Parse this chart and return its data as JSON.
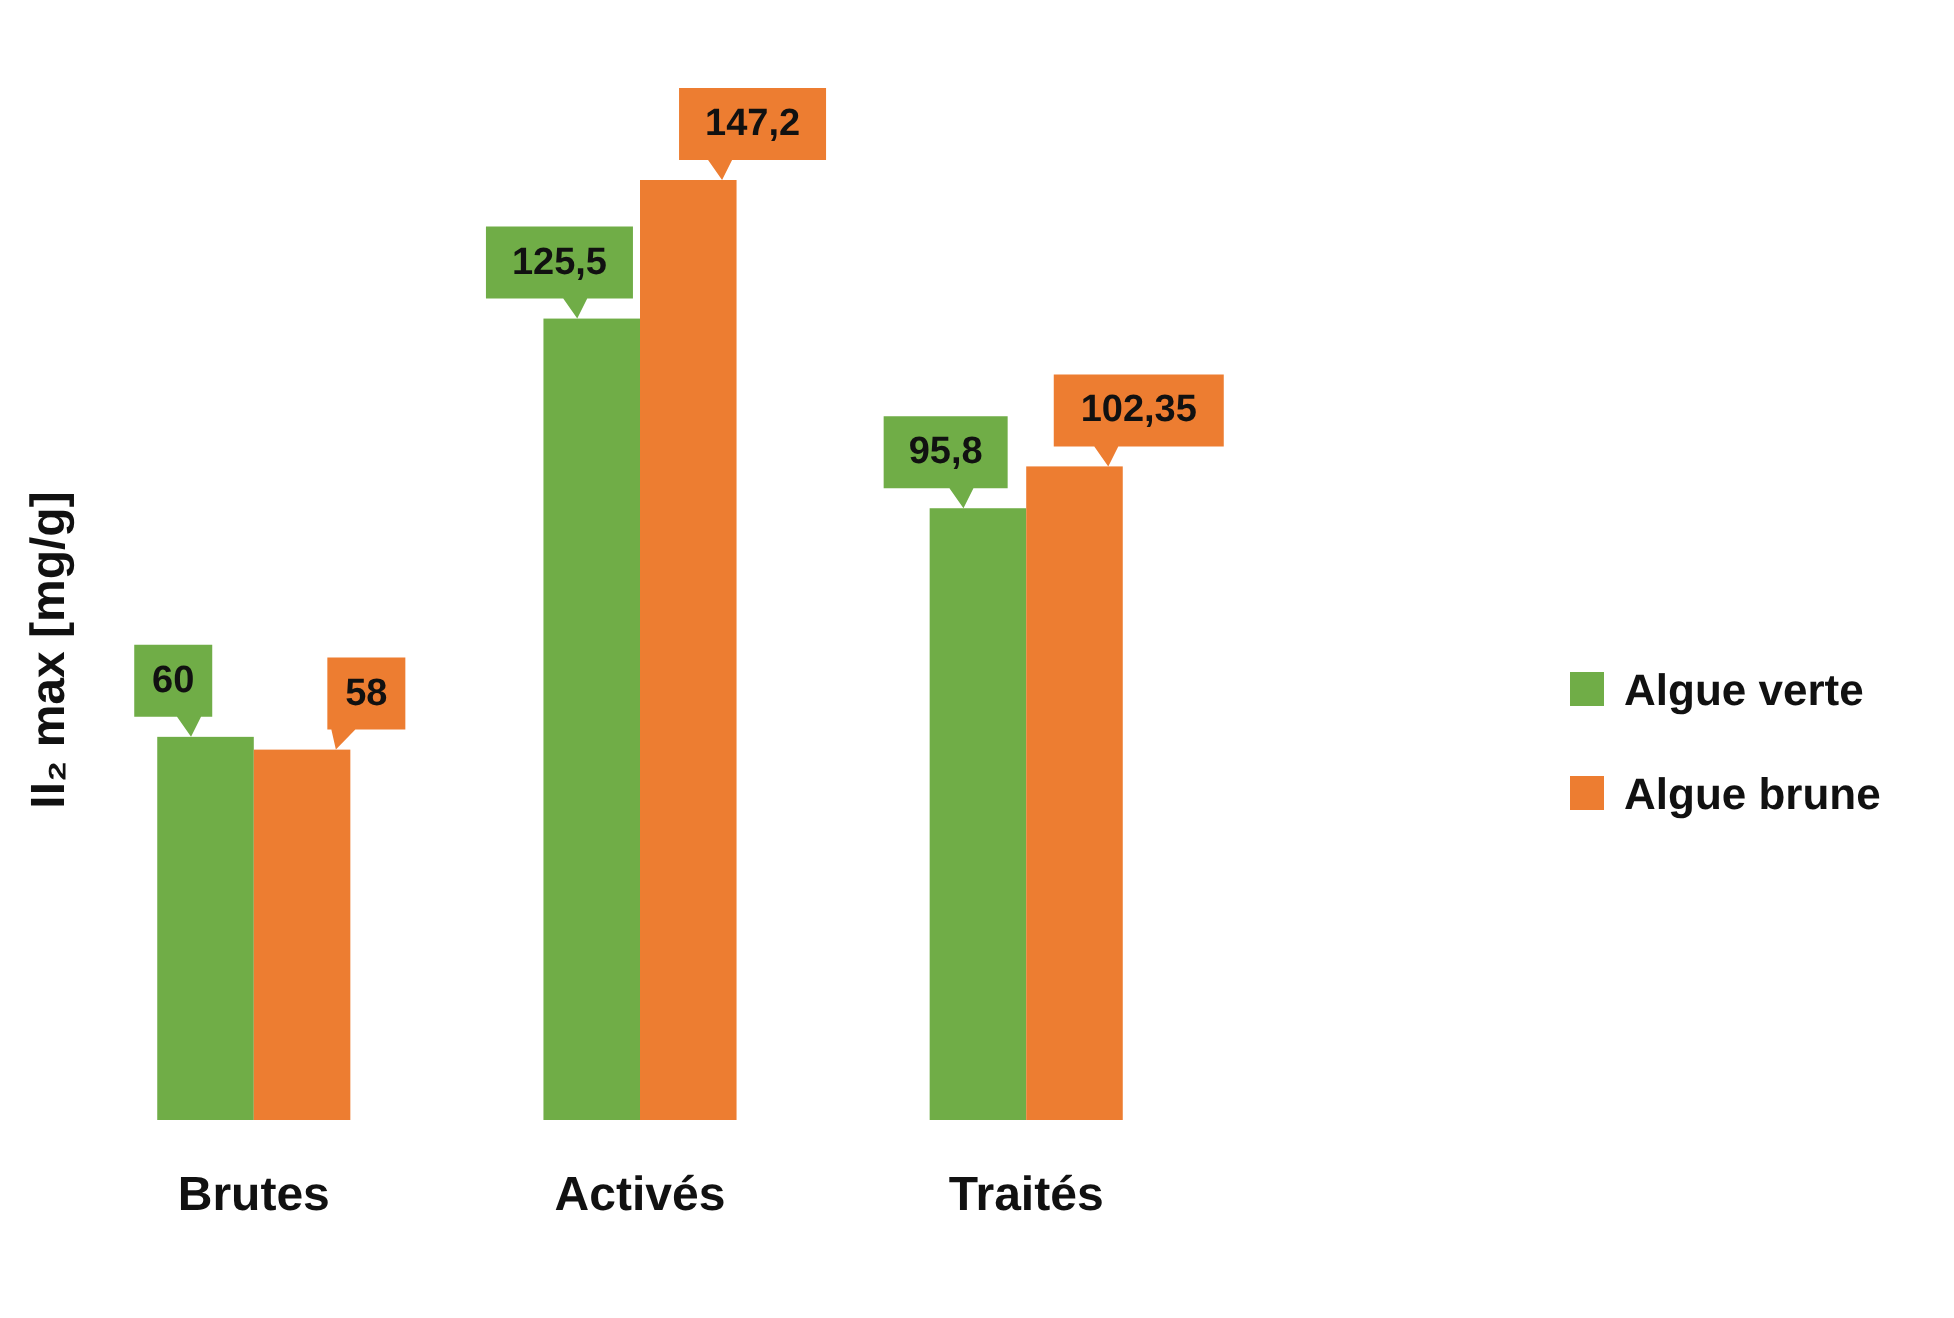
{
  "chart_data": {
    "type": "bar",
    "ylabel": "II₂ max [mg/g]",
    "categories": [
      "Brutes",
      "Activés",
      "Traités"
    ],
    "series": [
      {
        "name": "Algue verte",
        "color": "#70ad47",
        "values": [
          60,
          125.5,
          95.8
        ],
        "value_labels": [
          "60",
          "125,5",
          "95,8"
        ]
      },
      {
        "name": "Algue brune",
        "color": "#ed7d31",
        "values": [
          58,
          147.2,
          102.35
        ],
        "value_labels": [
          "58",
          "147,2",
          "102,35"
        ]
      }
    ],
    "legend": "right"
  }
}
